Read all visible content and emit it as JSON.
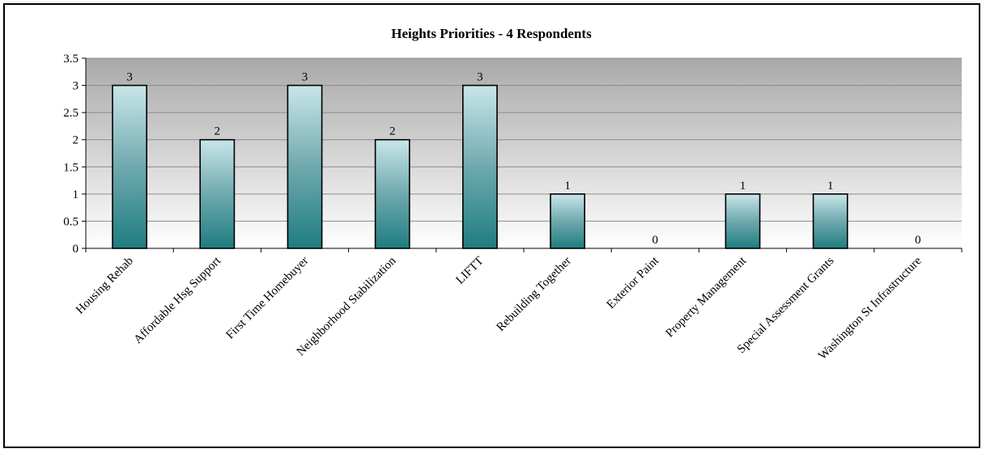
{
  "chart_data": {
    "type": "bar",
    "title": "Heights Priorities  - 4 Respondents",
    "xlabel": "",
    "ylabel": "",
    "categories": [
      "Housing Rehab",
      "Affordable Hsg Support",
      "First Time Homebuyer",
      "Neighborhood Stabilization",
      "LIFTT",
      "Rebuilding Together",
      "Exterior Paint",
      "Property Management",
      "Special Assessment Grants",
      "Washington St Infrastructure"
    ],
    "values": [
      3,
      2,
      3,
      2,
      3,
      1,
      0,
      1,
      1,
      0
    ],
    "ylim": [
      0,
      3.5
    ],
    "yticks": [
      "0",
      "0.5",
      "1",
      "1.5",
      "2",
      "2.5",
      "3",
      "3.5"
    ],
    "grid": true,
    "legend": "none",
    "colors": {
      "bar_top": "#c9e6ea",
      "bar_bottom": "#1e7d80",
      "plot_bg_top": "#a9a9a9",
      "plot_bg_bottom": "#ffffff"
    }
  }
}
